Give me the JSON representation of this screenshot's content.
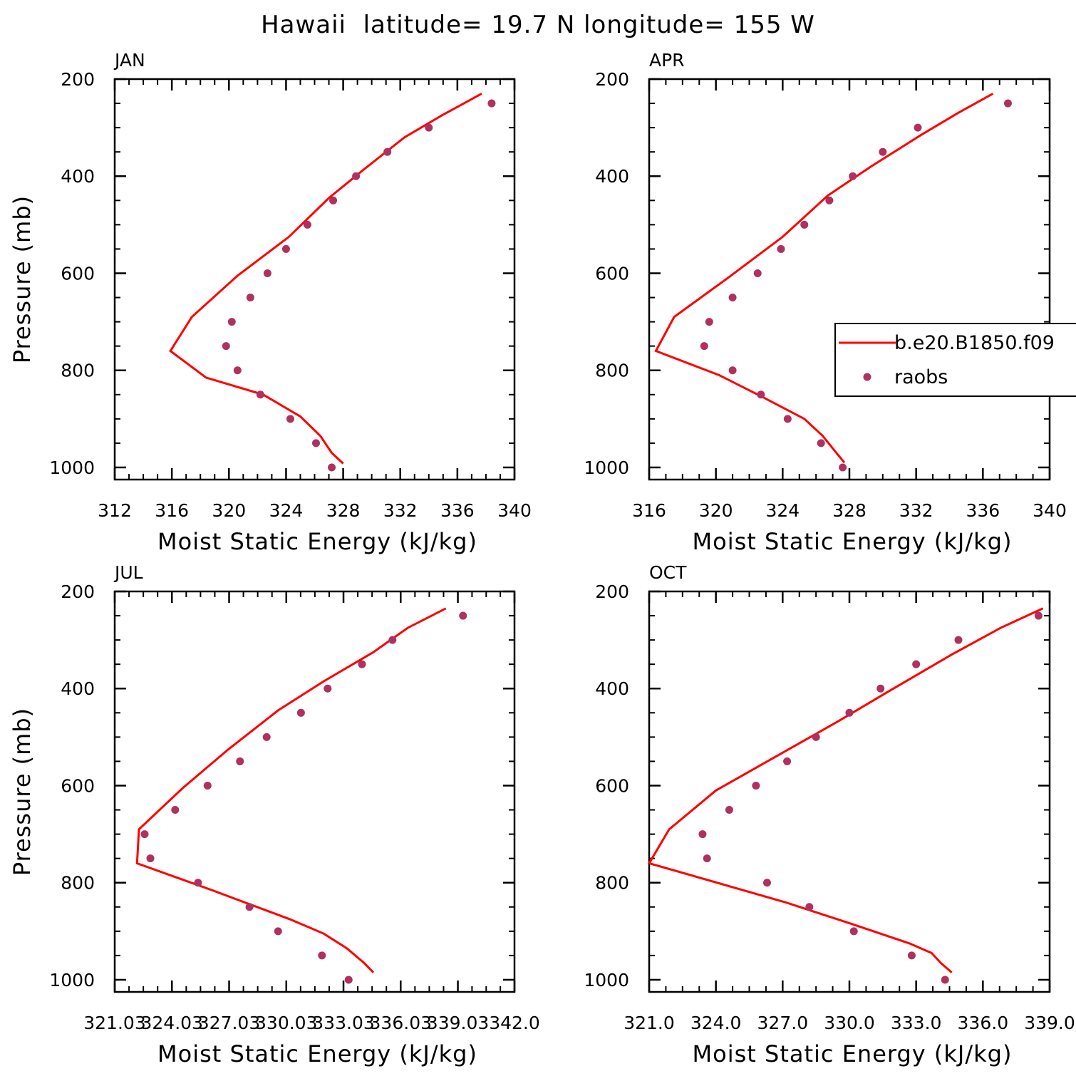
{
  "figure": {
    "title": "Hawaii  latitude= 19.7 N longitude= 155 W"
  },
  "colors": {
    "model_line": "#ff0000",
    "obs_marker": "#b03060",
    "axes": "#000000"
  },
  "chart_data": [
    {
      "type": "line",
      "panel": "JAN",
      "xlabel": "Moist Static Energy (kJ/kg)",
      "ylabel": "Pressure (mb)",
      "xlim": [
        312,
        340
      ],
      "ylim": [
        200,
        1025
      ],
      "y_inverted": true,
      "xticks": [
        312,
        316,
        320,
        324,
        328,
        332,
        336,
        340
      ],
      "xtick_labels": [
        "312",
        "316",
        "320",
        "324",
        "328",
        "332",
        "336",
        "340"
      ],
      "yticks": [
        200,
        400,
        600,
        800,
        1000
      ],
      "ytick_labels": [
        "200",
        "400",
        "600",
        "800",
        "1000"
      ],
      "series": [
        {
          "name": "b.e20.B1850.f09",
          "kind": "line",
          "x": [
            328.0,
            327.2,
            326.4,
            325.0,
            322.4,
            318.4,
            315.9,
            317.4,
            320.6,
            324.2,
            327.0,
            329.5,
            332.3,
            334.9,
            337.7
          ],
          "y": [
            992,
            970,
            935,
            895,
            850,
            815,
            760,
            690,
            605,
            525,
            445,
            385,
            320,
            275,
            230
          ]
        },
        {
          "name": "raobs",
          "kind": "scatter",
          "x": [
            327.2,
            326.1,
            324.3,
            322.2,
            320.6,
            319.8,
            320.2,
            321.5,
            322.7,
            324.0,
            325.5,
            327.3,
            328.9,
            331.1,
            334.0,
            338.4
          ],
          "y": [
            1000,
            950,
            900,
            850,
            800,
            750,
            700,
            650,
            600,
            550,
            500,
            450,
            400,
            350,
            300,
            250
          ]
        }
      ]
    },
    {
      "type": "line",
      "panel": "APR",
      "xlabel": "Moist Static Energy (kJ/kg)",
      "ylabel": "",
      "xlim": [
        316,
        340
      ],
      "ylim": [
        200,
        1025
      ],
      "y_inverted": true,
      "xticks": [
        316,
        320,
        324,
        328,
        332,
        336,
        340
      ],
      "xtick_labels": [
        "316",
        "320",
        "324",
        "328",
        "332",
        "336",
        "340"
      ],
      "yticks": [
        200,
        400,
        600,
        800,
        1000
      ],
      "ytick_labels": [
        "200",
        "400",
        "600",
        "800",
        "1000"
      ],
      "legend": {
        "position": "center-right",
        "entries": [
          "b.e20.B1850.f09",
          "raobs"
        ]
      },
      "series": [
        {
          "name": "b.e20.B1850.f09",
          "kind": "line",
          "x": [
            327.7,
            327.1,
            326.4,
            325.3,
            322.8,
            320.2,
            316.4,
            317.5,
            320.7,
            324.0,
            326.7,
            329.3,
            332.3,
            334.5,
            336.6
          ],
          "y": [
            990,
            965,
            935,
            900,
            855,
            810,
            760,
            690,
            610,
            525,
            440,
            380,
            315,
            270,
            230
          ]
        },
        {
          "name": "raobs",
          "kind": "scatter",
          "x": [
            327.6,
            326.3,
            324.3,
            322.7,
            321.0,
            319.3,
            319.6,
            321.0,
            322.5,
            323.9,
            325.3,
            326.8,
            328.2,
            330.0,
            332.1,
            337.5
          ],
          "y": [
            1000,
            950,
            900,
            850,
            800,
            750,
            700,
            650,
            600,
            550,
            500,
            450,
            400,
            350,
            300,
            250
          ]
        }
      ]
    },
    {
      "type": "line",
      "panel": "JUL",
      "xlabel": "Moist Static Energy (kJ/kg)",
      "ylabel": "Pressure (mb)",
      "xlim": [
        321.03,
        342.0
      ],
      "ylim": [
        200,
        1025
      ],
      "y_inverted": true,
      "xticks": [
        321.03,
        324.03,
        327.03,
        330.03,
        333.03,
        336.03,
        339.03,
        342.0
      ],
      "xtick_labels": [
        "321.03",
        "324.03",
        "327.03",
        "330.03",
        "333.03",
        "336.03",
        "339.03",
        "342.0"
      ],
      "yticks": [
        200,
        400,
        600,
        800,
        1000
      ],
      "ytick_labels": [
        "200",
        "400",
        "600",
        "800",
        "1000"
      ],
      "series": [
        {
          "name": "b.e20.B1850.f09",
          "kind": "line",
          "x": [
            334.6,
            334.1,
            333.2,
            332.0,
            330.2,
            326.1,
            322.2,
            322.3,
            324.6,
            327.0,
            329.6,
            332.0,
            334.6,
            336.4,
            338.4
          ],
          "y": [
            985,
            965,
            935,
            905,
            875,
            815,
            760,
            690,
            605,
            525,
            445,
            385,
            325,
            275,
            235
          ]
        },
        {
          "name": "raobs",
          "kind": "scatter",
          "x": [
            333.3,
            331.9,
            329.6,
            328.1,
            325.4,
            322.9,
            322.6,
            324.2,
            325.9,
            327.6,
            329.0,
            330.8,
            332.2,
            334.0,
            335.6,
            339.3
          ],
          "y": [
            1000,
            950,
            900,
            850,
            800,
            750,
            700,
            650,
            600,
            550,
            500,
            450,
            400,
            350,
            300,
            250
          ]
        }
      ]
    },
    {
      "type": "line",
      "panel": "OCT",
      "xlabel": "Moist Static Energy (kJ/kg)",
      "ylabel": "",
      "xlim": [
        321.0,
        339.0
      ],
      "ylim": [
        200,
        1025
      ],
      "y_inverted": true,
      "xticks": [
        321.0,
        324.0,
        327.0,
        330.0,
        333.0,
        336.0,
        339.0
      ],
      "xtick_labels": [
        "321.0",
        "324.0",
        "327.0",
        "330.0",
        "333.0",
        "336.0",
        "339.0"
      ],
      "yticks": [
        200,
        400,
        600,
        800,
        1000
      ],
      "ytick_labels": [
        "200",
        "400",
        "600",
        "800",
        "1000"
      ],
      "series": [
        {
          "name": "b.e20.B1850.f09",
          "kind": "line",
          "x": [
            334.6,
            334.1,
            333.7,
            332.7,
            330.1,
            327.1,
            321.0,
            321.9,
            324.0,
            326.7,
            329.4,
            331.8,
            334.6,
            336.8,
            338.7
          ],
          "y": [
            985,
            965,
            945,
            925,
            885,
            840,
            760,
            690,
            610,
            540,
            470,
            405,
            330,
            275,
            235
          ]
        },
        {
          "name": "raobs",
          "kind": "scatter",
          "x": [
            334.3,
            332.8,
            330.2,
            328.2,
            326.3,
            323.6,
            323.4,
            324.6,
            325.8,
            327.2,
            328.5,
            330.0,
            331.4,
            333.0,
            334.9,
            338.5
          ],
          "y": [
            1000,
            950,
            900,
            850,
            800,
            750,
            700,
            650,
            600,
            550,
            500,
            450,
            400,
            350,
            300,
            250
          ]
        }
      ]
    }
  ]
}
